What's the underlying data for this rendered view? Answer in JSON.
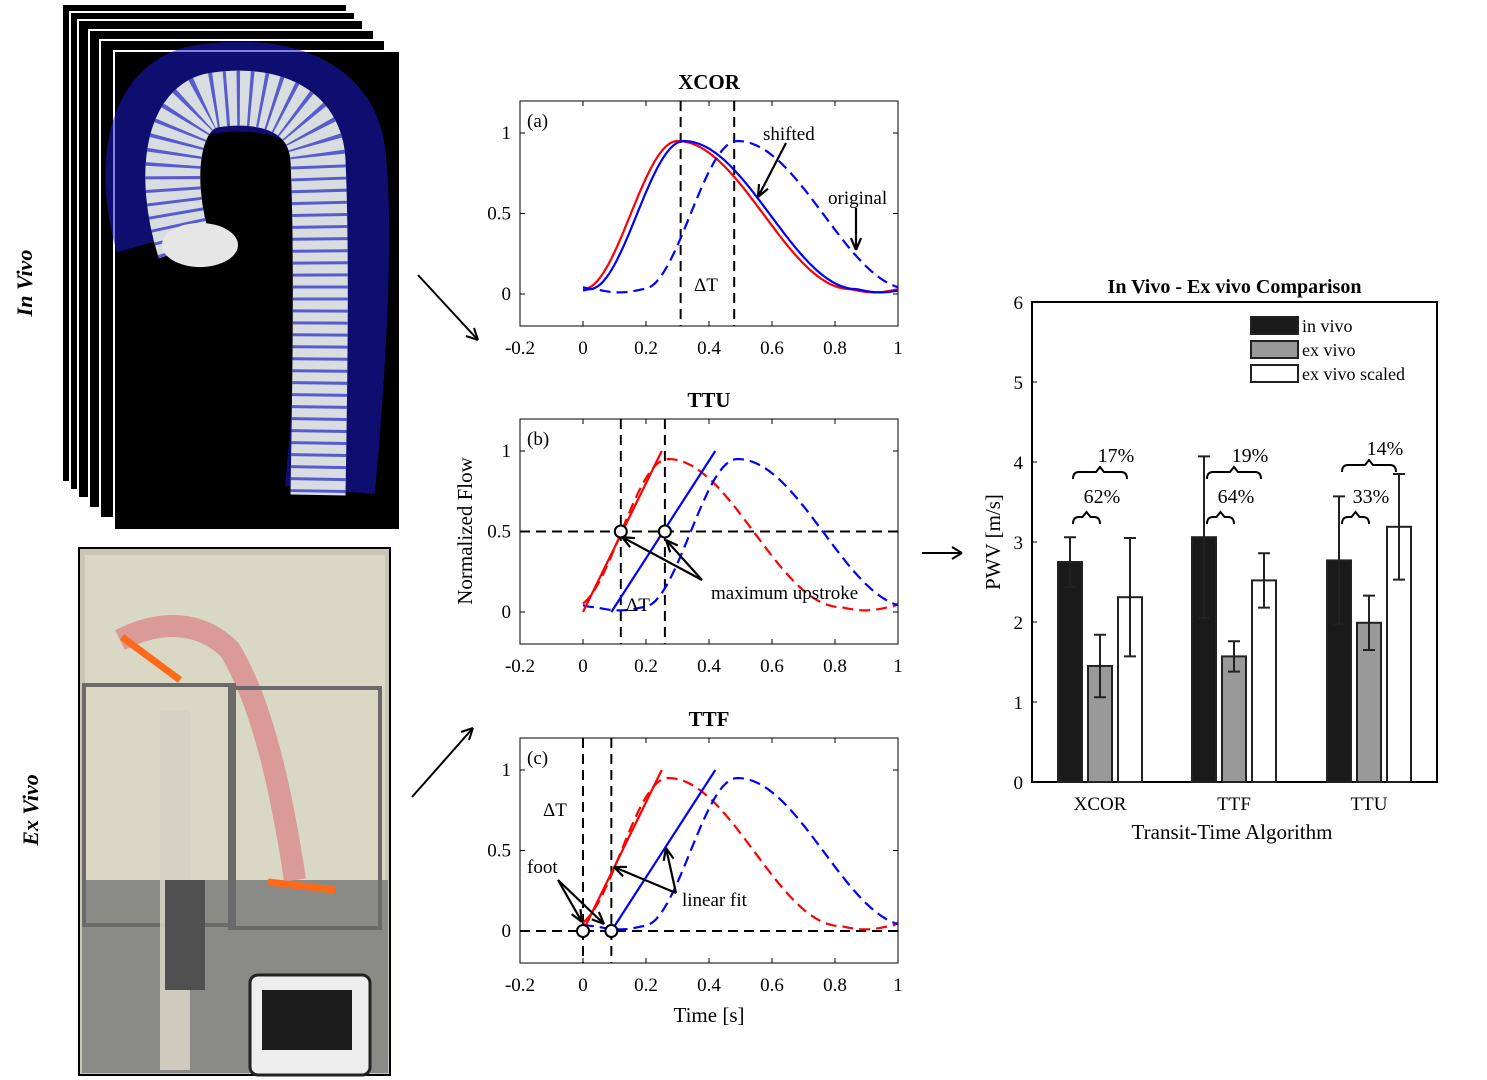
{
  "side_labels": {
    "in_vivo": "In Vivo",
    "ex_vivo": "Ex Vivo"
  },
  "chart_data": [
    {
      "type": "line",
      "id": "a",
      "title": "XCOR",
      "panel_label": "(a)",
      "xlim": [
        -0.2,
        1
      ],
      "ylim": [
        0,
        1
      ],
      "xticks": [
        "-0.2",
        "0",
        "0.2",
        "0.4",
        "0.6",
        "0.8",
        "1"
      ],
      "yticks": [
        "0",
        "0.5",
        "1"
      ],
      "series": [
        {
          "name": "red",
          "color": "#ff0000",
          "style": "solid",
          "shape": "wave",
          "shift": 0
        },
        {
          "name": "blue shifted",
          "color": "#0000ff",
          "style": "solid",
          "shape": "wave",
          "shift": 0.02
        },
        {
          "name": "blue original",
          "color": "#0000ff",
          "style": "dashed",
          "shape": "wave",
          "shift": 0.19
        }
      ],
      "vlines": [
        0.31,
        0.48
      ],
      "annotations": {
        "delta_t": "ΔT",
        "shifted": "shifted",
        "original": "original"
      }
    },
    {
      "type": "line",
      "id": "b",
      "title": "TTU",
      "panel_label": "(b)",
      "xlim": [
        -0.2,
        1
      ],
      "ylim": [
        0,
        1
      ],
      "xticks": [
        "-0.2",
        "0",
        "0.2",
        "0.4",
        "0.6",
        "0.8",
        "1"
      ],
      "yticks": [
        "0",
        "0.5",
        "1"
      ],
      "ylabel": "Normalized Flow",
      "series": [
        {
          "name": "red",
          "color": "#ff0000",
          "style": "dashed",
          "shape": "wave",
          "shift": -0.03
        },
        {
          "name": "blue",
          "color": "#0000ff",
          "style": "dashed",
          "shape": "wave",
          "shift": 0.19
        },
        {
          "name": "red upstroke",
          "color": "#ff0000",
          "style": "solid",
          "shape": "line",
          "from": [
            0,
            0
          ],
          "to": [
            0.25,
            1
          ]
        },
        {
          "name": "blue upstroke",
          "color": "#0000ff",
          "style": "solid",
          "shape": "line",
          "from": [
            0.09,
            0
          ],
          "to": [
            0.42,
            1
          ]
        }
      ],
      "vlines": [
        0.12,
        0.26
      ],
      "hline": 0.5,
      "markers": [
        [
          0.12,
          0.5
        ],
        [
          0.26,
          0.5
        ]
      ],
      "annotations": {
        "delta_t": "ΔT",
        "maximum_upstroke": "maximum upstroke"
      }
    },
    {
      "type": "line",
      "id": "c",
      "title": "TTF",
      "panel_label": "(c)",
      "xlim": [
        -0.2,
        1
      ],
      "ylim": [
        0,
        1
      ],
      "xticks": [
        "-0.2",
        "0",
        "0.2",
        "0.4",
        "0.6",
        "0.8",
        "1"
      ],
      "yticks": [
        "0",
        "0.5",
        "1"
      ],
      "xlabel": "Time [s]",
      "series": [
        {
          "name": "red",
          "color": "#ff0000",
          "style": "dashed",
          "shape": "wave",
          "shift": -0.03
        },
        {
          "name": "blue",
          "color": "#0000ff",
          "style": "dashed",
          "shape": "wave",
          "shift": 0.19
        },
        {
          "name": "red linear fit",
          "color": "#ff0000",
          "style": "solid",
          "shape": "line",
          "from": [
            0,
            0
          ],
          "to": [
            0.25,
            1
          ]
        },
        {
          "name": "blue linear fit",
          "color": "#0000ff",
          "style": "solid",
          "shape": "line",
          "from": [
            0.09,
            0
          ],
          "to": [
            0.42,
            1
          ]
        }
      ],
      "vlines": [
        0,
        0.09
      ],
      "hline": 0,
      "markers": [
        [
          0,
          0
        ],
        [
          0.09,
          0
        ]
      ],
      "annotations": {
        "delta_t": "ΔT",
        "foot": "foot",
        "linear_fit": "linear fit"
      }
    },
    {
      "type": "bar",
      "id": "comparison",
      "title": "In Vivo - Ex vivo Comparison",
      "xlabel": "Transit-Time Algorithm",
      "ylabel": "PWV [m/s]",
      "ylim": [
        0,
        6
      ],
      "yticks": [
        "0",
        "1",
        "2",
        "3",
        "4",
        "5",
        "6"
      ],
      "categories": [
        "XCOR",
        "TTF",
        "TTU"
      ],
      "legend_position": "top-right",
      "series": [
        {
          "name": "in vivo",
          "color": "#1a1a1a",
          "values": [
            2.75,
            3.06,
            2.77
          ],
          "errors": [
            0.31,
            1.01,
            0.8
          ]
        },
        {
          "name": "ex vivo",
          "color": "#999999",
          "values": [
            1.45,
            1.57,
            1.99
          ],
          "errors": [
            0.39,
            0.19,
            0.34
          ]
        },
        {
          "name": "ex vivo scaled",
          "color": "#ffffff",
          "values": [
            2.31,
            2.52,
            3.19
          ],
          "errors": [
            0.74,
            0.34,
            0.66
          ]
        }
      ],
      "brackets": [
        {
          "category": "XCOR",
          "inner": "62%",
          "outer": "17%"
        },
        {
          "category": "TTF",
          "inner": "64%",
          "outer": "19%"
        },
        {
          "category": "TTU",
          "inner": "33%",
          "outer": "14%"
        }
      ]
    }
  ]
}
